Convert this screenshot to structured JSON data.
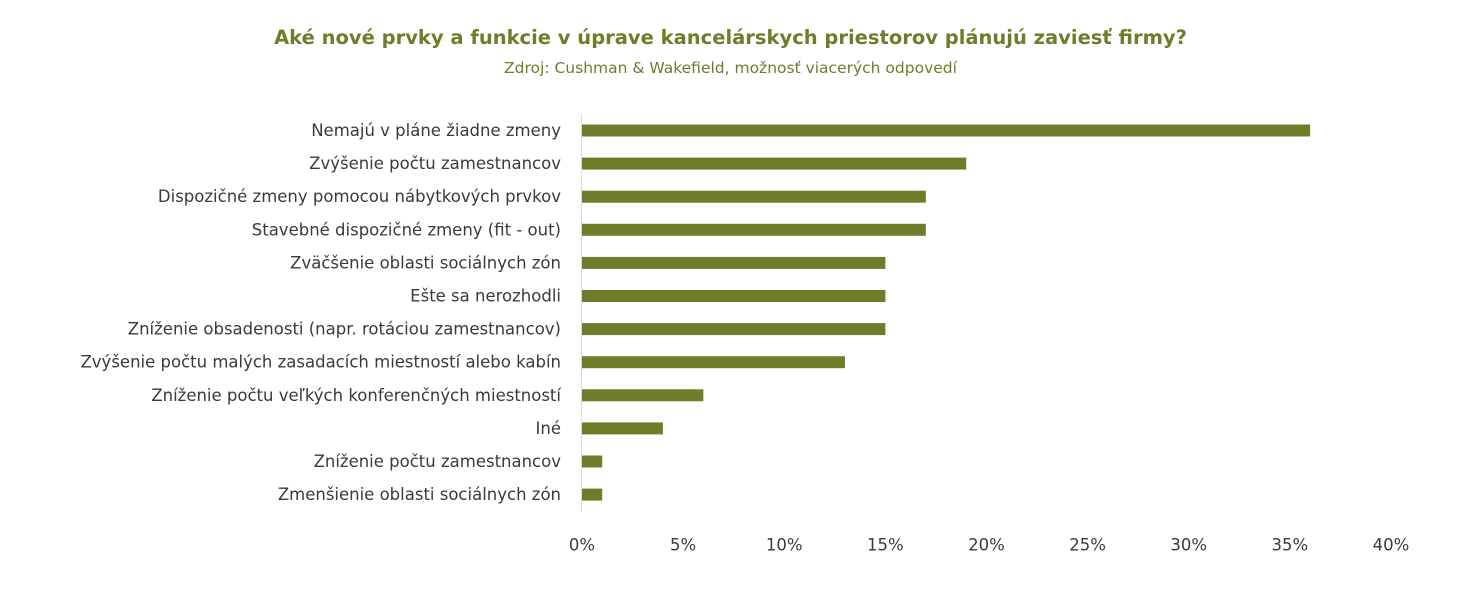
{
  "chart_data": {
    "type": "bar",
    "orientation": "horizontal",
    "title": "Aké nové prvky a funkcie v úprave kancelárskych priestorov plánujú zaviesť firmy?",
    "subtitle": "Zdroj: Cushman & Wakefield, možnosť viacerých odpovedí",
    "categories": [
      "Nemajú v pláne žiadne zmeny",
      "Zvýšenie počtu zamestnancov",
      "Dispozičné zmeny pomocou nábytkových prvkov",
      "Stavebné dispozičné zmeny (fit - out)",
      "Zväčšenie oblasti sociálnych zón",
      "Ešte sa nerozhodli",
      "Zníženie obsadenosti (napr. rotáciou zamestnancov)",
      "Zvýšenie počtu malých zasadacích miestností alebo kabín",
      "Zníženie počtu veľkých konferenčných miestností",
      "Iné",
      "Zníženie počtu zamestnancov",
      "Zmenšienie oblasti sociálnych zón"
    ],
    "values": [
      36,
      19,
      17,
      17,
      15,
      15,
      15,
      13,
      6,
      4,
      1,
      1
    ],
    "xlim": [
      0,
      40
    ],
    "xticks": [
      0,
      5,
      10,
      15,
      20,
      25,
      30,
      35,
      40
    ],
    "xtick_labels": [
      "0%",
      "5%",
      "10%",
      "15%",
      "20%",
      "25%",
      "30%",
      "35%",
      "40%"
    ],
    "grid": false,
    "legend": "none",
    "colors": {
      "bar": "#6e7d2a",
      "title": "#6e7d2a",
      "text": "#3a3a3a",
      "axis": "#d9d9d9"
    }
  }
}
